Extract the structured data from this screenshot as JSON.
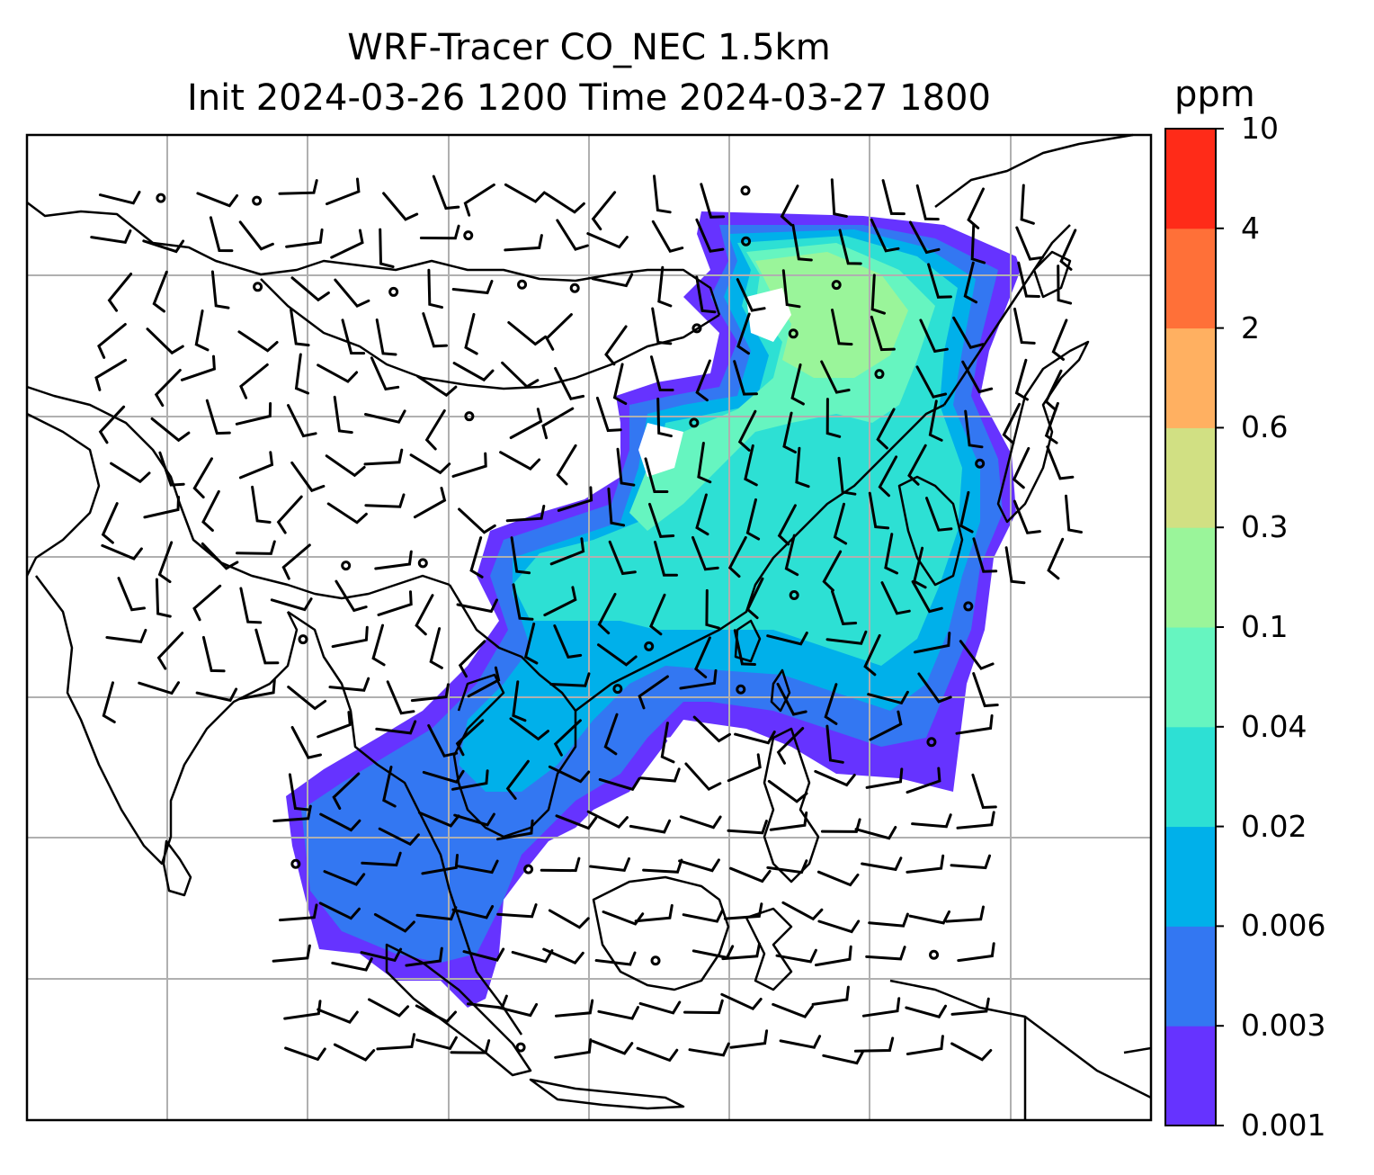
{
  "title": {
    "line1": "WRF-Tracer CO_NEC 1.5km",
    "line2": "Init 2024-03-26 1200 Time 2024-03-27 1800"
  },
  "colorbar": {
    "unit": "ppm",
    "levels": [
      "0.001",
      "0.003",
      "0.006",
      "0.02",
      "0.04",
      "0.1",
      "0.3",
      "0.6",
      "2",
      "4",
      "10"
    ],
    "colors": [
      "#6633ff",
      "#3377f2",
      "#00b0ea",
      "#2de0d4",
      "#66f5c0",
      "#9af59a",
      "#d1e083",
      "#ffb061",
      "#ff7038",
      "#ff2b18"
    ]
  },
  "map": {
    "field": "CO tracer concentration",
    "overlays": [
      "coastlines",
      "wind-barbs",
      "lat-lon-gridlines"
    ],
    "gridlines": true
  }
}
